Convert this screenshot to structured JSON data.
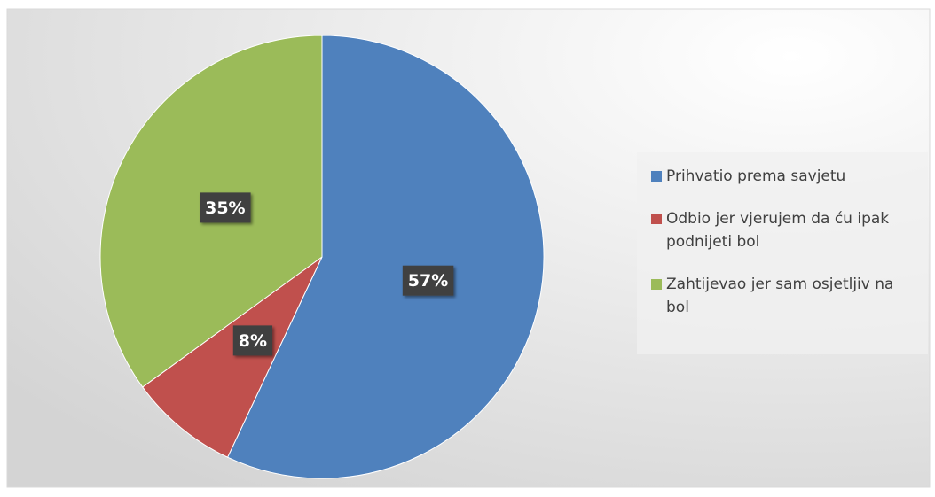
{
  "chart_data": {
    "type": "pie",
    "categories": [
      "Prihvatio prema savjetu",
      "Odbio jer vjerujem da ću ipak podnijeti bol",
      "Zahtijevao jer sam osjetljiv na bol"
    ],
    "values": [
      57,
      8,
      35
    ],
    "value_labels": [
      "57%",
      "8%",
      "35%"
    ],
    "colors": [
      "#4f81bd",
      "#c0504d",
      "#9bbb59"
    ],
    "legend": "right"
  }
}
